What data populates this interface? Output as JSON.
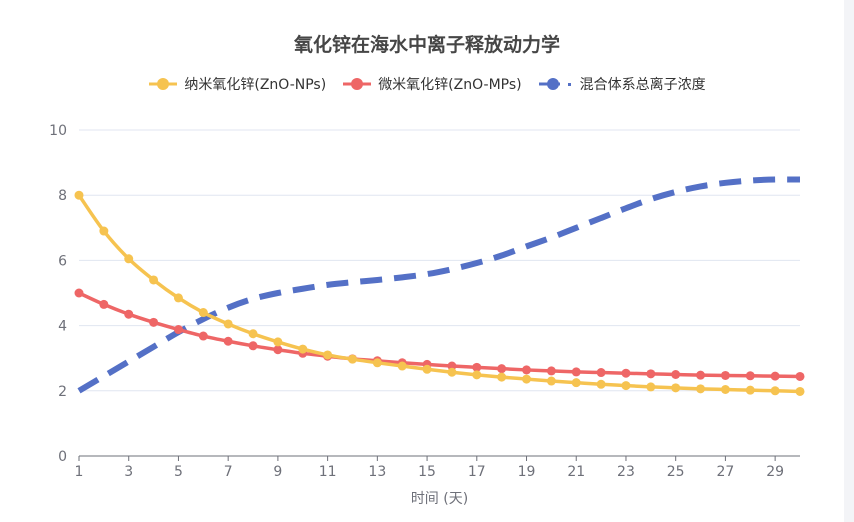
{
  "chart_data": {
    "type": "line",
    "title": "氧化锌在海水中离子释放动力学",
    "xlabel": "时间 (天)",
    "ylabel": "",
    "x": [
      1,
      2,
      3,
      4,
      5,
      6,
      7,
      8,
      9,
      10,
      11,
      12,
      13,
      14,
      15,
      16,
      17,
      18,
      19,
      20,
      21,
      22,
      23,
      24,
      25,
      26,
      27,
      28,
      29,
      30
    ],
    "x_tick_labels": [
      "1",
      "3",
      "5",
      "7",
      "9",
      "11",
      "13",
      "15",
      "17",
      "19",
      "21",
      "23",
      "25",
      "27",
      "29"
    ],
    "ylim": [
      0,
      10
    ],
    "y_ticks": [
      "0",
      "2",
      "4",
      "6",
      "8",
      "10"
    ],
    "grid": true,
    "legend_position": "top-center",
    "series": [
      {
        "name": "纳米氧化锌(ZnO-NPs)",
        "color": "#f6c350",
        "style": "solid",
        "markers": true,
        "values": [
          8.0,
          6.9,
          6.05,
          5.4,
          4.85,
          4.4,
          4.05,
          3.75,
          3.5,
          3.28,
          3.1,
          2.97,
          2.86,
          2.76,
          2.66,
          2.57,
          2.49,
          2.42,
          2.36,
          2.3,
          2.25,
          2.2,
          2.16,
          2.12,
          2.09,
          2.06,
          2.04,
          2.02,
          2.0,
          1.98
        ]
      },
      {
        "name": "微米氧化锌(ZnO-MPs)",
        "color": "#ee6666",
        "style": "solid",
        "markers": true,
        "values": [
          5.0,
          4.65,
          4.35,
          4.1,
          3.88,
          3.68,
          3.52,
          3.38,
          3.26,
          3.15,
          3.06,
          2.98,
          2.92,
          2.86,
          2.81,
          2.76,
          2.72,
          2.68,
          2.64,
          2.61,
          2.58,
          2.56,
          2.54,
          2.52,
          2.5,
          2.48,
          2.47,
          2.46,
          2.45,
          2.44
        ]
      },
      {
        "name": "混合体系总离子浓度",
        "color": "#5470c6",
        "style": "dashed",
        "markers": false,
        "values": [
          2.0,
          2.45,
          2.9,
          3.35,
          3.8,
          4.2,
          4.55,
          4.82,
          5.0,
          5.13,
          5.25,
          5.33,
          5.4,
          5.48,
          5.58,
          5.73,
          5.92,
          6.15,
          6.43,
          6.7,
          7.0,
          7.3,
          7.6,
          7.88,
          8.1,
          8.27,
          8.38,
          8.45,
          8.48,
          8.48
        ]
      }
    ]
  }
}
